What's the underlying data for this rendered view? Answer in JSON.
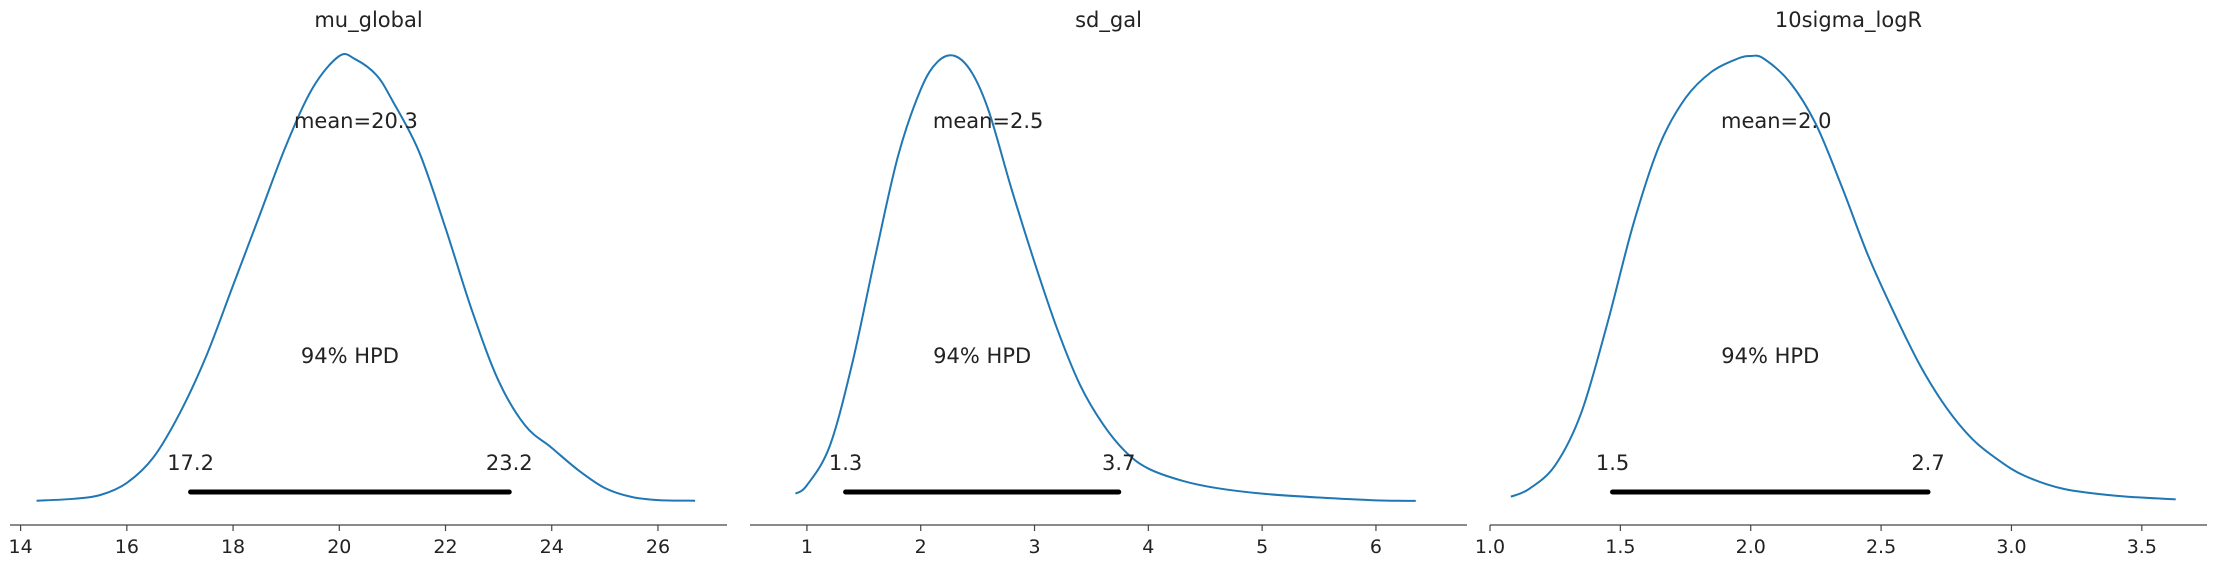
{
  "chart_data": [
    {
      "type": "line",
      "title": "mu_global",
      "mean_label": "mean=20.3",
      "hpd_label": "94% HPD",
      "hpd": [
        17.2,
        23.2
      ],
      "hpd_labels": [
        "17.2",
        "23.2"
      ],
      "xlim": [
        13.8,
        27.3
      ],
      "xticks": [
        14,
        16,
        18,
        20,
        22,
        24,
        26
      ],
      "xtick_labels": [
        "14",
        "16",
        "18",
        "20",
        "22",
        "24",
        "26"
      ],
      "line_color": "#1f77b4",
      "grid": false,
      "x": [
        14.3,
        15.0,
        15.5,
        16.0,
        16.5,
        17.0,
        17.5,
        18.0,
        18.5,
        19.0,
        19.5,
        20.0,
        20.3,
        20.7,
        21.0,
        21.5,
        22.0,
        22.5,
        23.0,
        23.5,
        24.0,
        24.5,
        25.0,
        25.5,
        26.0,
        26.7
      ],
      "y": [
        0.002,
        0.005,
        0.011,
        0.03,
        0.07,
        0.14,
        0.23,
        0.34,
        0.45,
        0.56,
        0.65,
        0.7,
        0.695,
        0.67,
        0.63,
        0.55,
        0.43,
        0.3,
        0.19,
        0.12,
        0.085,
        0.05,
        0.022,
        0.008,
        0.003,
        0.002
      ]
    },
    {
      "type": "line",
      "title": "sd_gal",
      "mean_label": "mean=2.5",
      "hpd_label": "94% HPD",
      "hpd": [
        1.34,
        3.74
      ],
      "hpd_labels": [
        "1.3",
        "3.7"
      ],
      "xlim": [
        0.5,
        6.8
      ],
      "xticks": [
        1,
        2,
        3,
        4,
        5,
        6
      ],
      "xtick_labels": [
        "1",
        "2",
        "3",
        "4",
        "5",
        "6"
      ],
      "line_color": "#1f77b4",
      "grid": false,
      "x": [
        0.9,
        1.0,
        1.2,
        1.4,
        1.6,
        1.8,
        2.0,
        2.15,
        2.3,
        2.45,
        2.6,
        2.8,
        3.0,
        3.2,
        3.4,
        3.6,
        3.8,
        4.0,
        4.3,
        4.6,
        5.0,
        5.5,
        6.0,
        6.35
      ],
      "y": [
        0.015,
        0.03,
        0.1,
        0.25,
        0.44,
        0.62,
        0.74,
        0.79,
        0.8,
        0.77,
        0.7,
        0.56,
        0.43,
        0.31,
        0.21,
        0.14,
        0.09,
        0.06,
        0.038,
        0.025,
        0.015,
        0.008,
        0.003,
        0.002
      ]
    },
    {
      "type": "line",
      "title": "10sigma_logR",
      "mean_label": "mean=2.0",
      "hpd_label": "94% HPD",
      "hpd": [
        1.47,
        2.68
      ],
      "hpd_labels": [
        "1.5",
        "2.7"
      ],
      "xlim": [
        1.0,
        3.75
      ],
      "xticks": [
        1.0,
        1.5,
        2.0,
        2.5,
        3.0,
        3.5
      ],
      "xtick_labels": [
        "1.0",
        "1.5",
        "2.0",
        "2.5",
        "3.0",
        "3.5"
      ],
      "line_color": "#1f77b4",
      "grid": false,
      "x": [
        1.08,
        1.15,
        1.25,
        1.35,
        1.45,
        1.55,
        1.65,
        1.75,
        1.85,
        1.95,
        2.0,
        2.05,
        2.15,
        2.25,
        2.35,
        2.45,
        2.55,
        2.65,
        2.75,
        2.85,
        2.95,
        3.05,
        3.2,
        3.4,
        3.63
      ],
      "y": [
        0.01,
        0.025,
        0.07,
        0.17,
        0.34,
        0.53,
        0.68,
        0.77,
        0.82,
        0.845,
        0.85,
        0.845,
        0.8,
        0.72,
        0.6,
        0.47,
        0.36,
        0.26,
        0.18,
        0.12,
        0.08,
        0.05,
        0.025,
        0.012,
        0.005
      ]
    }
  ]
}
